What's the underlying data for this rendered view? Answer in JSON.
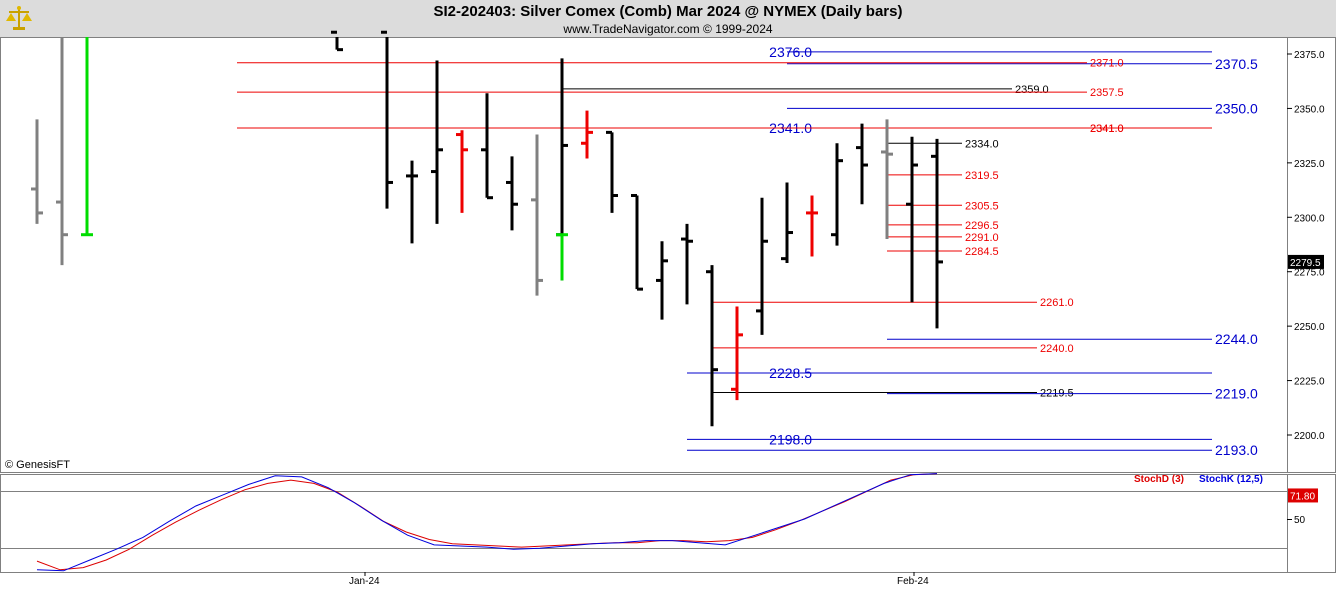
{
  "header": {
    "title": "SI2-202403:  Silver Comex (Comb) Mar 2024 @ NYMEX  (Daily bars)",
    "subtitle": "www.TradeNavigator.com © 1999-2024",
    "watermark": "© GenesisFT",
    "logo_icon": "balance-scale-gold-icon"
  },
  "chart_data": [
    {
      "type": "ohlc",
      "title": "SI2-202403:  Silver Comex (Comb) Mar 2024 @ NYMEX  (Daily bars)",
      "x_labels": [
        "Jan-24",
        "Feb-24"
      ],
      "y_ticks": [
        "2375.0",
        "2350.0",
        "2325.0",
        "2300.0",
        "2275.0",
        "2250.0",
        "2225.0",
        "2200.0"
      ],
      "y_tick_values": [
        2375,
        2350,
        2325,
        2300,
        2275,
        2250,
        2225,
        2200
      ],
      "ylim": [
        2183,
        2385
      ],
      "last_price_label": "2279.5",
      "last_price": 2279.5,
      "bars": [
        {
          "h": 2345,
          "l": 2297,
          "c": 2302,
          "color": "gray",
          "o": 2313
        },
        {
          "h": 2385,
          "l": 2278,
          "c": 2292,
          "color": "gray",
          "o": 2307
        },
        {
          "h": 2385,
          "l": 2292,
          "c": 2292,
          "color": "green",
          "o": 2292
        },
        {
          "h": 2385,
          "l": 2377,
          "c": 2377,
          "color": "black",
          "o": 2385
        },
        {
          "h": 2385,
          "l": 2304,
          "c": 2316,
          "color": "black",
          "o": 2385
        },
        {
          "h": 2326,
          "l": 2288,
          "c": 2319,
          "color": "black",
          "o": 2319
        },
        {
          "h": 2372,
          "l": 2297,
          "c": 2331,
          "color": "black",
          "o": 2321
        },
        {
          "h": 2340,
          "l": 2302,
          "c": 2331,
          "color": "red",
          "o": 2338
        },
        {
          "h": 2357,
          "l": 2309,
          "c": 2309,
          "color": "black",
          "o": 2331
        },
        {
          "h": 2328,
          "l": 2294,
          "c": 2306,
          "color": "black",
          "o": 2316
        },
        {
          "h": 2338,
          "l": 2264,
          "c": 2271,
          "color": "gray",
          "o": 2308
        },
        {
          "h": 2373,
          "l": 2271,
          "c": 2333,
          "color": "black",
          "o": 2292
        },
        {
          "h": 2292,
          "l": 2271,
          "c": 2292,
          "color": "green",
          "o": 2292
        },
        {
          "h": 2349,
          "l": 2327,
          "c": 2339,
          "color": "red",
          "o": 2334
        },
        {
          "h": 2339,
          "l": 2302,
          "c": 2310,
          "color": "black",
          "o": 2339
        },
        {
          "h": 2310,
          "l": 2267,
          "c": 2267,
          "color": "black",
          "o": 2310
        },
        {
          "h": 2289,
          "l": 2253,
          "c": 2280,
          "color": "black",
          "o": 2271
        },
        {
          "h": 2297,
          "l": 2260,
          "c": 2289,
          "color": "black",
          "o": 2290
        },
        {
          "h": 2278,
          "l": 2204,
          "c": 2230,
          "color": "black",
          "o": 2275
        },
        {
          "h": 2259,
          "l": 2216,
          "c": 2246,
          "color": "red",
          "o": 2221
        },
        {
          "h": 2309,
          "l": 2246,
          "c": 2289,
          "color": "black",
          "o": 2257
        },
        {
          "h": 2316,
          "l": 2279,
          "c": 2293,
          "color": "black",
          "o": 2281
        },
        {
          "h": 2310,
          "l": 2282,
          "c": 2302,
          "color": "red",
          "o": 2302
        },
        {
          "h": 2334,
          "l": 2287,
          "c": 2326,
          "color": "black",
          "o": 2292
        },
        {
          "h": 2343,
          "l": 2306,
          "c": 2324,
          "color": "black",
          "o": 2332
        },
        {
          "h": 2345,
          "l": 2290,
          "c": 2329,
          "color": "gray",
          "o": 2330
        },
        {
          "h": 2337,
          "l": 2261,
          "c": 2324,
          "color": "black",
          "o": 2306
        },
        {
          "h": 2336,
          "l": 2249,
          "c": 2279.5,
          "color": "black",
          "o": 2328
        }
      ],
      "levels": [
        {
          "value": 2376.0,
          "label": "2376.0",
          "label_side": "left",
          "color": "blue"
        },
        {
          "value": 2370.5,
          "label": "2370.5",
          "label_side": "right",
          "color": "blue"
        },
        {
          "value": 2371.0,
          "label": "2371.0",
          "label_side": "mid",
          "color": "red"
        },
        {
          "value": 2359.0,
          "label": "2359.0",
          "label_side": "mid",
          "color": "black"
        },
        {
          "value": 2357.5,
          "label": "2357.5",
          "label_side": "mid",
          "color": "red"
        },
        {
          "value": 2350.0,
          "label": "2350.0",
          "label_side": "right",
          "color": "blue"
        },
        {
          "value": 2341.0,
          "label": "2341.0",
          "label_side": "left",
          "color": "blue"
        },
        {
          "value": 2341.0,
          "label": "2341.0",
          "label_side": "mid",
          "color": "red"
        },
        {
          "value": 2341.0,
          "label": "2341.0",
          "label_side": "mid2",
          "color": "red"
        },
        {
          "value": 2334.0,
          "label": "2334.0",
          "label_side": "mid",
          "color": "black"
        },
        {
          "value": 2319.5,
          "label": "2319.5",
          "label_side": "mid",
          "color": "red"
        },
        {
          "value": 2305.5,
          "label": "2305.5",
          "label_side": "mid",
          "color": "red"
        },
        {
          "value": 2296.5,
          "label": "2296.5",
          "label_side": "mid",
          "color": "red"
        },
        {
          "value": 2291.0,
          "label": "2291.0",
          "label_side": "mid",
          "color": "red"
        },
        {
          "value": 2284.5,
          "label": "2284.5",
          "label_side": "mid",
          "color": "red"
        },
        {
          "value": 2261.0,
          "label": "2261.0",
          "label_side": "mid",
          "color": "red"
        },
        {
          "value": 2244.0,
          "label": "2244.0",
          "label_side": "right",
          "color": "blue"
        },
        {
          "value": 2240.0,
          "label": "2240.0",
          "label_side": "mid",
          "color": "red"
        },
        {
          "value": 2228.5,
          "label": "2228.5",
          "label_side": "left",
          "color": "blue"
        },
        {
          "value": 2219.5,
          "label": "2219.5",
          "label_side": "mid",
          "color": "black"
        },
        {
          "value": 2219.0,
          "label": "2219.0",
          "label_side": "right",
          "color": "blue"
        },
        {
          "value": 2198.0,
          "label": "2198.0",
          "label_side": "left",
          "color": "blue"
        },
        {
          "value": 2193.0,
          "label": "2193.0",
          "label_side": "right",
          "color": "blue"
        }
      ]
    },
    {
      "type": "line",
      "title": "",
      "series": [
        {
          "name": "StochD (3)",
          "color": "#dd0000",
          "values": [
            11,
            3,
            5,
            12,
            22,
            35,
            47,
            58,
            68,
            77,
            83,
            86,
            83,
            75,
            62,
            48,
            38,
            31,
            27,
            26,
            25,
            24,
            25,
            26,
            27,
            28,
            28,
            30,
            30,
            29,
            30,
            33,
            40,
            48,
            57,
            66,
            76,
            86,
            91,
            92
          ]
        },
        {
          "name": "StochK (12,5)",
          "color": "#0000dd",
          "values": [
            3,
            2,
            12,
            22,
            33,
            48,
            62,
            72,
            82,
            90,
            89,
            79,
            65,
            49,
            35,
            26,
            25,
            24,
            22,
            23,
            25,
            27,
            28,
            30,
            30,
            28,
            26,
            34,
            42,
            50,
            61,
            72,
            83,
            91,
            92
          ]
        }
      ],
      "y_ticks": [
        "50"
      ],
      "last_value_label": "71.80",
      "last_value": 71.8
    }
  ]
}
